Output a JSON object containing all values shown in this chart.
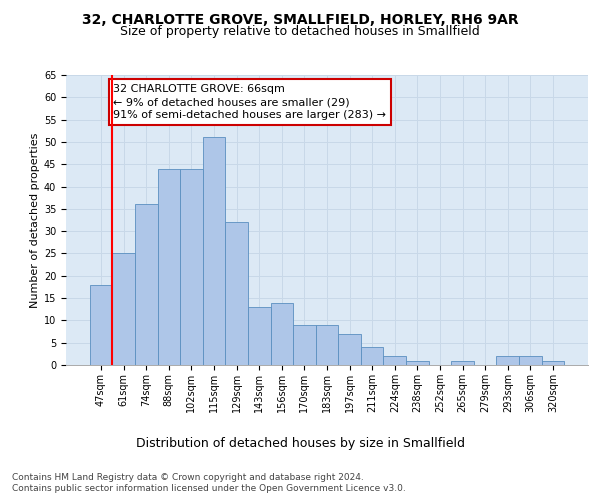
{
  "title": "32, CHARLOTTE GROVE, SMALLFIELD, HORLEY, RH6 9AR",
  "subtitle": "Size of property relative to detached houses in Smallfield",
  "xlabel": "Distribution of detached houses by size in Smallfield",
  "ylabel": "Number of detached properties",
  "categories": [
    "47sqm",
    "61sqm",
    "74sqm",
    "88sqm",
    "102sqm",
    "115sqm",
    "129sqm",
    "143sqm",
    "156sqm",
    "170sqm",
    "183sqm",
    "197sqm",
    "211sqm",
    "224sqm",
    "238sqm",
    "252sqm",
    "265sqm",
    "279sqm",
    "293sqm",
    "306sqm",
    "320sqm"
  ],
  "values": [
    18,
    25,
    36,
    44,
    44,
    51,
    32,
    13,
    14,
    9,
    9,
    7,
    4,
    2,
    1,
    0,
    1,
    0,
    2,
    2,
    1
  ],
  "bar_color": "#aec6e8",
  "bar_edge_color": "#5a8fc0",
  "red_line_index": 1,
  "annotation_text_line1": "32 CHARLOTTE GROVE: 66sqm",
  "annotation_text_line2": "← 9% of detached houses are smaller (29)",
  "annotation_text_line3": "91% of semi-detached houses are larger (283) →",
  "annotation_box_color": "#ffffff",
  "annotation_box_edge_color": "#cc0000",
  "ylim": [
    0,
    65
  ],
  "yticks": [
    0,
    5,
    10,
    15,
    20,
    25,
    30,
    35,
    40,
    45,
    50,
    55,
    60,
    65
  ],
  "grid_color": "#c8d8e8",
  "background_color": "#dce9f5",
  "footer_line1": "Contains HM Land Registry data © Crown copyright and database right 2024.",
  "footer_line2": "Contains public sector information licensed under the Open Government Licence v3.0.",
  "title_fontsize": 10,
  "subtitle_fontsize": 9,
  "xlabel_fontsize": 9,
  "ylabel_fontsize": 8,
  "tick_fontsize": 7,
  "annotation_fontsize": 8,
  "footer_fontsize": 6.5
}
